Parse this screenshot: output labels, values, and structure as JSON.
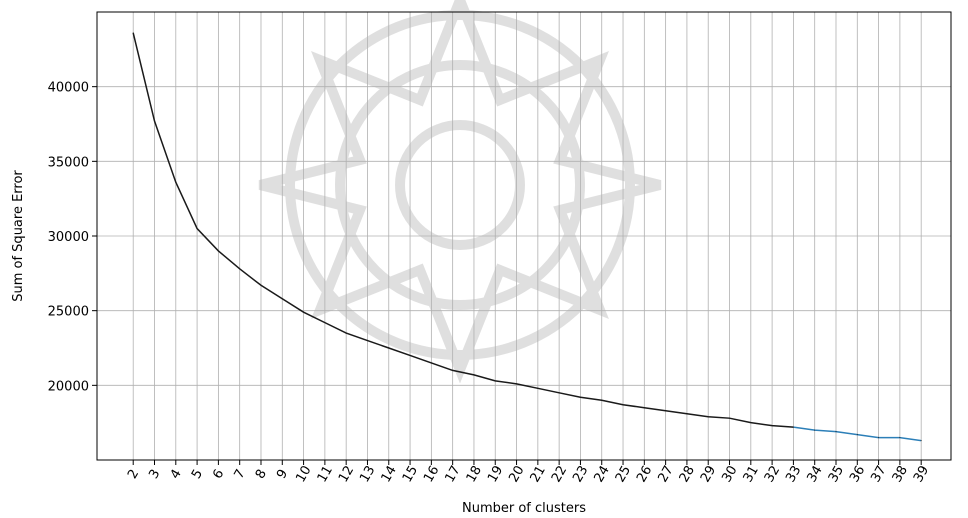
{
  "chart_data": {
    "type": "line",
    "title": "",
    "xlabel": "Number of clusters",
    "ylabel": "Sum of Square Error",
    "x": [
      2,
      3,
      4,
      5,
      6,
      7,
      8,
      9,
      10,
      11,
      12,
      13,
      14,
      15,
      16,
      17,
      18,
      19,
      20,
      21,
      22,
      23,
      24,
      25,
      26,
      27,
      28,
      29,
      30,
      31,
      32,
      33,
      34,
      35,
      36,
      37,
      38,
      39
    ],
    "series": [
      {
        "values": [
          43600,
          37700,
          33600,
          30500,
          29000,
          27800,
          26700,
          25800,
          24900,
          24200,
          23500,
          23000,
          22500,
          22000,
          21500,
          21000,
          20700,
          20300,
          20100,
          19800,
          19500,
          19200,
          19000,
          18700,
          18500,
          18300,
          18100,
          17900,
          17800,
          17500,
          17300,
          17200,
          17000,
          16900,
          16700,
          16500,
          16500,
          16300
        ],
        "color": "#1a1a1a",
        "tail_color": "#2c7fb8"
      }
    ],
    "xlim": [
      0.3,
      40.4
    ],
    "ylim": [
      15000,
      45000
    ],
    "yticks": [
      20000,
      25000,
      30000,
      35000,
      40000
    ],
    "grid": true,
    "legend": "none"
  }
}
